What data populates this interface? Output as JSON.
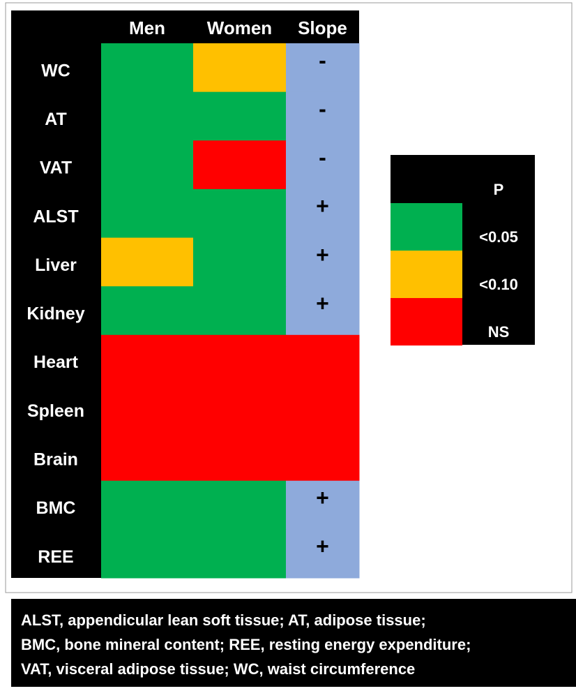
{
  "table": {
    "columns": [
      "Men",
      "Women",
      "Slope"
    ],
    "rows": [
      {
        "label": "WC",
        "cells": [
          {
            "color": "#00b050"
          },
          {
            "color": "#ffc000"
          },
          {
            "color": "#8eaadb",
            "text": "-"
          }
        ]
      },
      {
        "label": "AT",
        "cells": [
          {
            "color": "#00b050"
          },
          {
            "color": "#00b050"
          },
          {
            "color": "#8eaadb",
            "text": "-"
          }
        ]
      },
      {
        "label": "VAT",
        "cells": [
          {
            "color": "#00b050"
          },
          {
            "color": "#ff0000"
          },
          {
            "color": "#8eaadb",
            "text": "-"
          }
        ]
      },
      {
        "label": "ALST",
        "cells": [
          {
            "color": "#00b050"
          },
          {
            "color": "#00b050"
          },
          {
            "color": "#8eaadb",
            "text": "+"
          }
        ]
      },
      {
        "label": "Liver",
        "cells": [
          {
            "color": "#ffc000"
          },
          {
            "color": "#00b050"
          },
          {
            "color": "#8eaadb",
            "text": "+"
          }
        ]
      },
      {
        "label": "Kidney",
        "cells": [
          {
            "color": "#00b050"
          },
          {
            "color": "#00b050"
          },
          {
            "color": "#8eaadb",
            "text": "+"
          }
        ]
      },
      {
        "label": "Heart",
        "cells": [
          {
            "color": "#ff0000"
          },
          {
            "color": "#ff0000"
          },
          {
            "color": "#ff0000"
          }
        ]
      },
      {
        "label": "Spleen",
        "cells": [
          {
            "color": "#ff0000"
          },
          {
            "color": "#ff0000"
          },
          {
            "color": "#ff0000"
          }
        ]
      },
      {
        "label": "Brain",
        "cells": [
          {
            "color": "#ff0000"
          },
          {
            "color": "#ff0000"
          },
          {
            "color": "#ff0000"
          }
        ]
      },
      {
        "label": "BMC",
        "cells": [
          {
            "color": "#00b050"
          },
          {
            "color": "#00b050"
          },
          {
            "color": "#8eaadb",
            "text": "+"
          }
        ]
      },
      {
        "label": "REE",
        "cells": [
          {
            "color": "#00b050"
          },
          {
            "color": "#00b050"
          },
          {
            "color": "#8eaadb",
            "text": "+"
          }
        ]
      }
    ]
  },
  "legend": {
    "title": "P",
    "items": [
      {
        "label": "<0.05",
        "color": "#00b050"
      },
      {
        "label": "<0.10",
        "color": "#ffc000"
      },
      {
        "label": "NS",
        "color": "#ff0000"
      }
    ]
  },
  "footnote": [
    "ALST, appendicular lean soft tissue; AT, adipose tissue;",
    "BMC, bone mineral content; REE, resting energy expenditure;",
    "VAT, visceral adipose tissue; WC, waist circumference"
  ]
}
